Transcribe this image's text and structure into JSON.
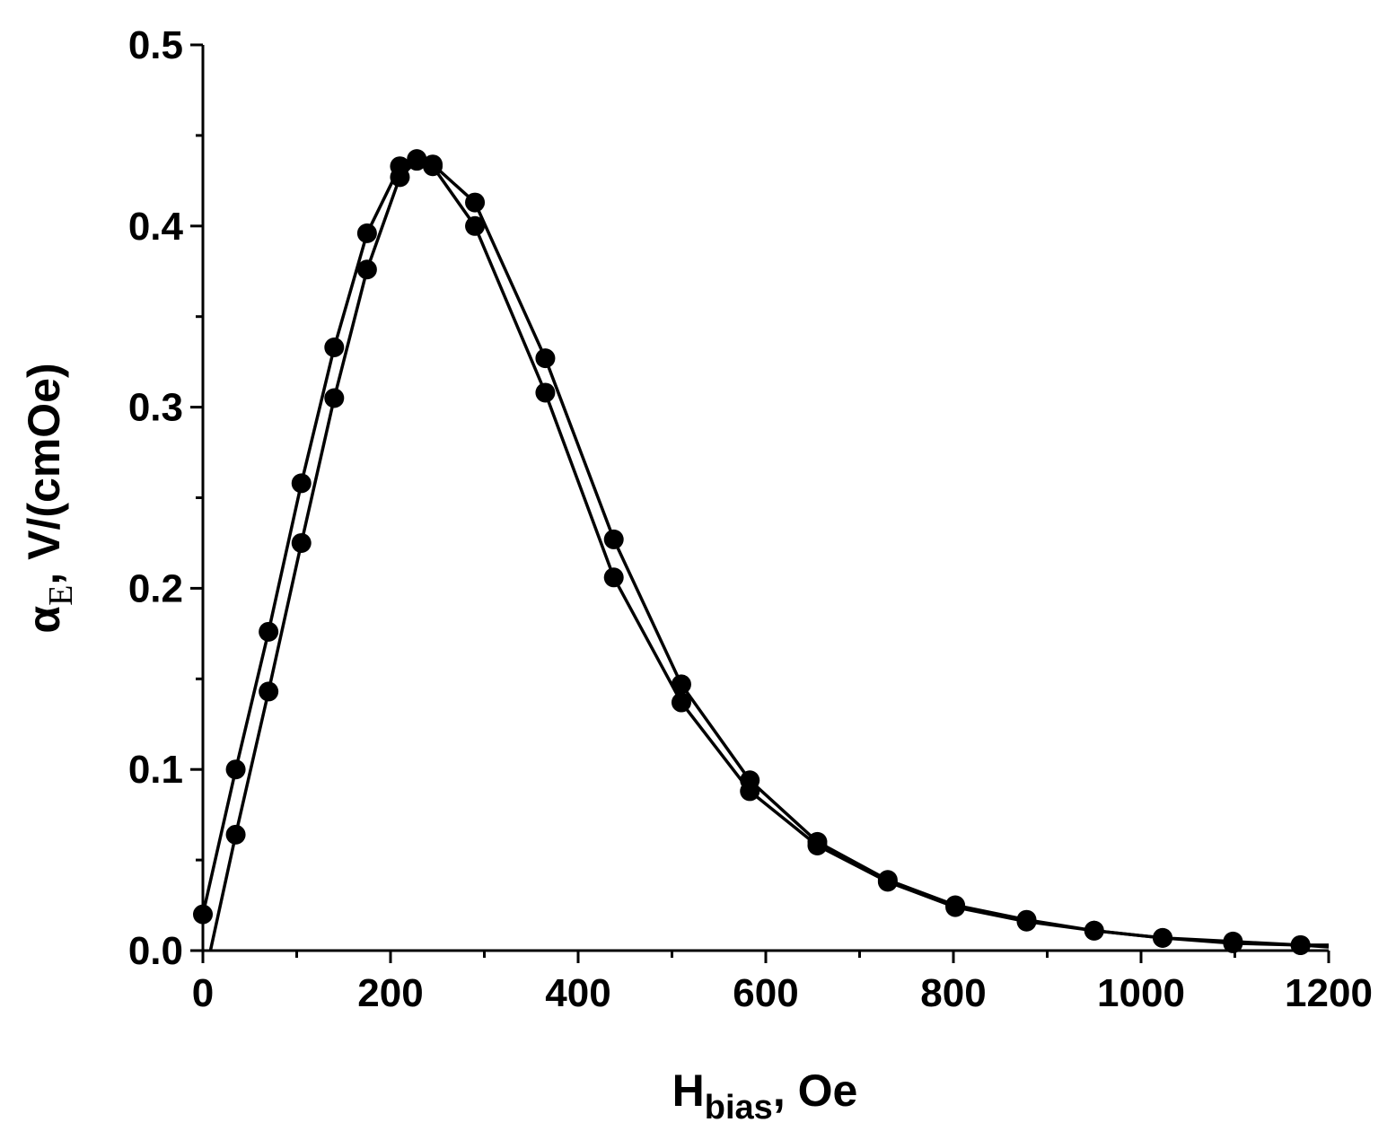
{
  "chart_data": {
    "type": "line",
    "xlabel": {
      "main": "H",
      "sub": "bias",
      "suffix": ", Oe"
    },
    "ylabel": {
      "main": "α",
      "sub": "E",
      "suffix": ", V/(cmOe)"
    },
    "xlim": [
      0,
      1200
    ],
    "ylim": [
      0,
      0.5
    ],
    "xticks": [
      "0",
      "200",
      "400",
      "600",
      "800",
      "1000",
      "1200"
    ],
    "yticks": [
      "0.0",
      "0.1",
      "0.2",
      "0.3",
      "0.4",
      "0.5"
    ],
    "xtick_values": [
      0,
      200,
      400,
      600,
      800,
      1000,
      1200
    ],
    "ytick_values": [
      0,
      0.1,
      0.2,
      0.3,
      0.4,
      0.5
    ],
    "grid": false,
    "marker_color": "#000000",
    "line_color": "#000000",
    "series": [
      {
        "x": [
          0,
          35,
          70,
          105,
          140,
          175,
          210,
          228,
          245,
          290,
          365,
          438,
          510,
          583,
          655,
          730,
          802,
          878,
          950,
          1023,
          1098,
          1170,
          1200
        ],
        "y": [
          0.02,
          0.1,
          0.176,
          0.258,
          0.333,
          0.396,
          0.433,
          0.437,
          0.434,
          0.413,
          0.327,
          0.227,
          0.147,
          0.094,
          0.06,
          0.039,
          0.025,
          0.017,
          0.011,
          0.007,
          0.005,
          0.003,
          0.003
        ],
        "markers": [
          true,
          true,
          true,
          true,
          true,
          true,
          true,
          true,
          true,
          true,
          true,
          true,
          true,
          true,
          true,
          true,
          true,
          true,
          true,
          true,
          true,
          true,
          false
        ]
      },
      {
        "x": [
          8,
          35,
          70,
          105,
          140,
          175,
          210,
          228,
          245,
          290,
          365,
          438,
          510,
          583,
          655,
          730,
          802,
          878,
          950,
          1023,
          1098,
          1170,
          1200
        ],
        "y": [
          0.0,
          0.064,
          0.143,
          0.225,
          0.305,
          0.376,
          0.427,
          0.436,
          0.433,
          0.4,
          0.308,
          0.206,
          0.137,
          0.088,
          0.058,
          0.038,
          0.024,
          0.016,
          0.011,
          0.007,
          0.004,
          0.003,
          0.002
        ],
        "markers": [
          false,
          true,
          true,
          true,
          true,
          true,
          true,
          true,
          true,
          true,
          true,
          true,
          true,
          true,
          true,
          true,
          true,
          true,
          true,
          true,
          true,
          true,
          false
        ]
      }
    ]
  }
}
